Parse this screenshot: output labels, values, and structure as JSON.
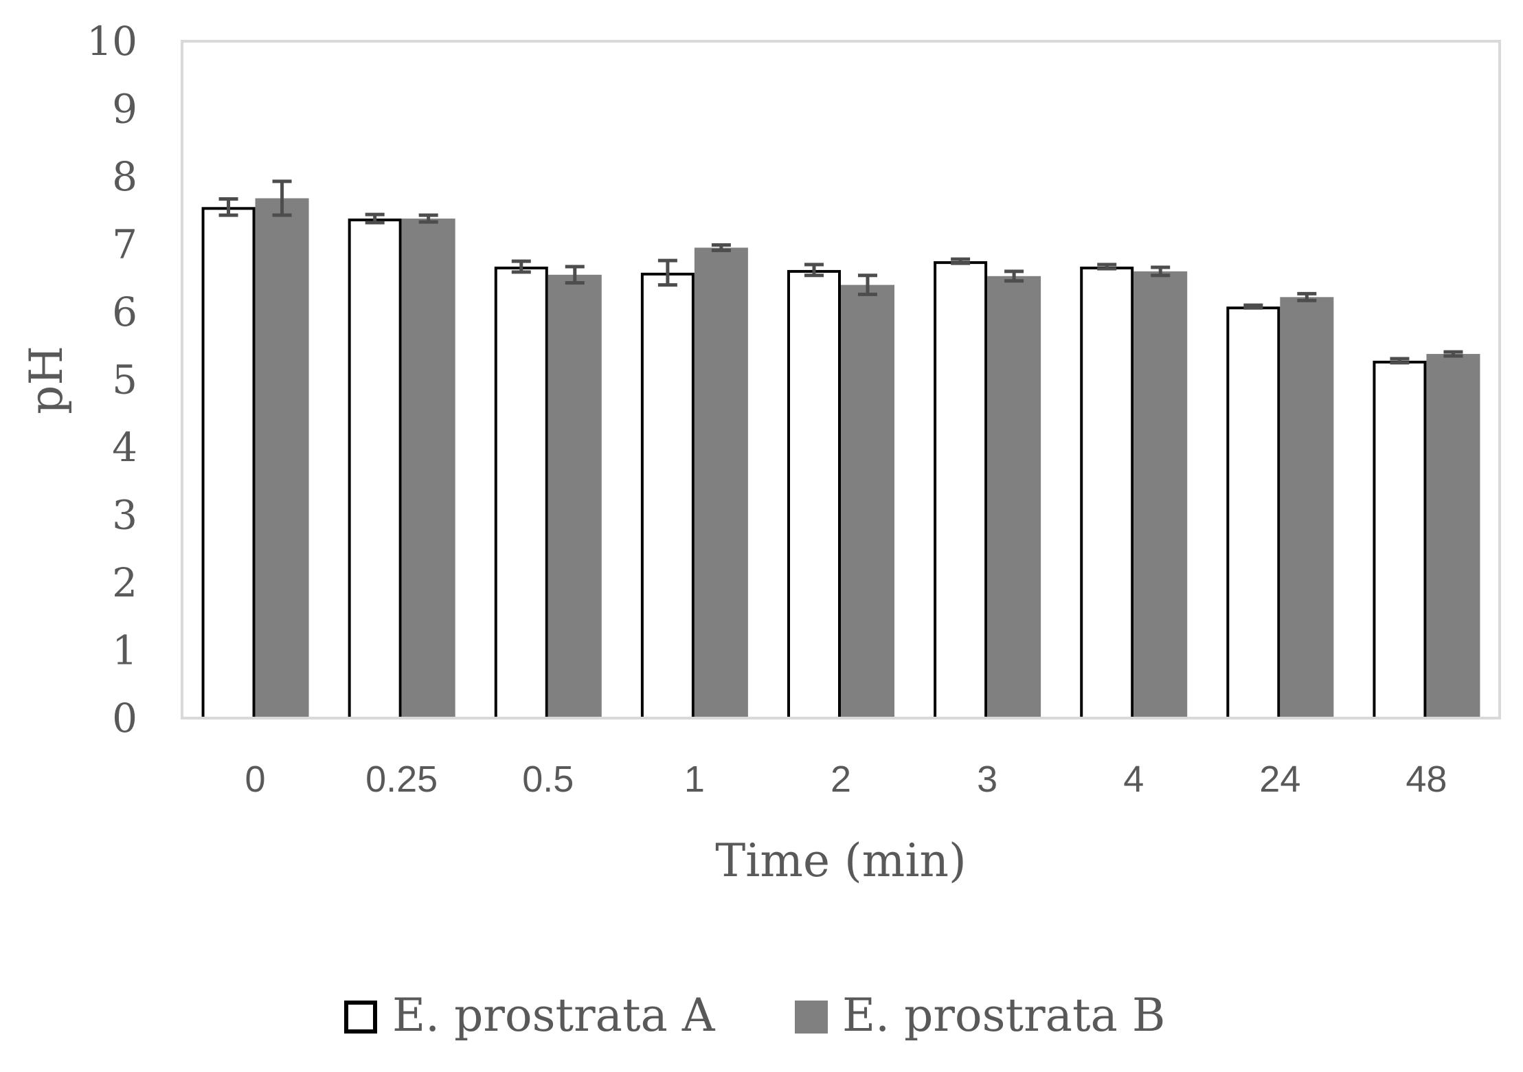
{
  "chart_data": {
    "type": "bar",
    "xlabel": "Time (min)",
    "ylabel": "pH",
    "ylim": [
      0,
      10
    ],
    "yticks": [
      "0",
      "1",
      "2",
      "3",
      "4",
      "5",
      "6",
      "7",
      "8",
      "9",
      "10"
    ],
    "categories": [
      "0",
      "0.25",
      "0.5",
      "1",
      "2",
      "3",
      "4",
      "24",
      "48"
    ],
    "series": [
      {
        "name": "E. prostrata A",
        "color": "#ffffff",
        "stroke": "#000000",
        "values": [
          7.55,
          7.38,
          6.67,
          6.58,
          6.62,
          6.75,
          6.67,
          6.08,
          5.28
        ],
        "errors": [
          0.12,
          0.06,
          0.08,
          0.18,
          0.08,
          0.03,
          0.03,
          0.02,
          0.03
        ]
      },
      {
        "name": "E. prostrata B",
        "color": "#808080",
        "stroke": "#808080",
        "values": [
          7.68,
          7.38,
          6.55,
          6.95,
          6.4,
          6.53,
          6.6,
          6.22,
          5.38
        ],
        "errors": [
          0.25,
          0.05,
          0.12,
          0.04,
          0.14,
          0.07,
          0.06,
          0.05,
          0.03
        ]
      }
    ],
    "legend_position": "bottom-center",
    "grid": false
  }
}
